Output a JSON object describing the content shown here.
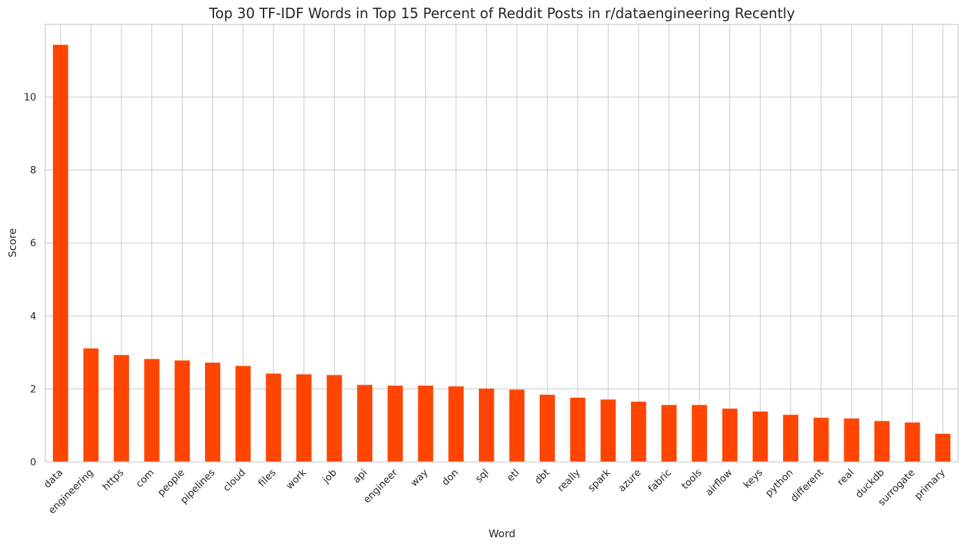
{
  "chart_data": {
    "type": "bar",
    "title": "Top 30 TF-IDF Words in Top 15 Percent of Reddit Posts in r/dataengineering Recently",
    "xlabel": "Word",
    "ylabel": "Score",
    "categories": [
      "data",
      "engineering",
      "https",
      "com",
      "people",
      "pipelines",
      "cloud",
      "files",
      "work",
      "job",
      "api",
      "engineer",
      "way",
      "don",
      "sql",
      "etl",
      "dbt",
      "really",
      "spark",
      "azure",
      "fabric",
      "tools",
      "airflow",
      "keys",
      "python",
      "different",
      "real",
      "duckdb",
      "surrogate",
      "primary"
    ],
    "values": [
      11.43,
      3.11,
      2.93,
      2.82,
      2.78,
      2.72,
      2.63,
      2.42,
      2.4,
      2.38,
      2.11,
      2.09,
      2.09,
      2.07,
      2.01,
      1.98,
      1.84,
      1.76,
      1.71,
      1.65,
      1.56,
      1.56,
      1.46,
      1.38,
      1.29,
      1.21,
      1.19,
      1.12,
      1.08,
      0.77
    ],
    "ylim": [
      0,
      11.99
    ],
    "yticks": [
      0,
      2,
      4,
      6,
      8,
      10
    ],
    "grid": true,
    "bar_color": "#ff4500",
    "grid_color": "#cccccc",
    "axes_edge_color": "#cccccc",
    "text_color": "#262626"
  }
}
